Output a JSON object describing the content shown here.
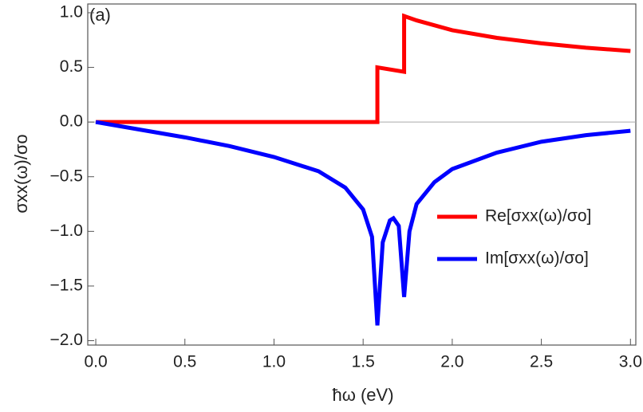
{
  "chart_data": {
    "type": "line",
    "annotation": "(a)",
    "x_label": "ħω (eV)",
    "y_label": "σxx(ω)/σo",
    "xlim": [
      -0.045,
      3.03
    ],
    "ylim": [
      -2.04,
      1.08
    ],
    "xticks": [
      {
        "value": 0,
        "label": "0.0"
      },
      {
        "value": 0.5,
        "label": "0.5"
      },
      {
        "value": 1,
        "label": "1.0"
      },
      {
        "value": 1.5,
        "label": "1.5"
      },
      {
        "value": 2,
        "label": "2.0"
      },
      {
        "value": 2.5,
        "label": "2.5"
      },
      {
        "value": 3,
        "label": "3.0"
      }
    ],
    "yticks": [
      {
        "value": 1,
        "label": "1.0"
      },
      {
        "value": 0.5,
        "label": "0.5"
      },
      {
        "value": 0,
        "label": "0.0"
      },
      {
        "value": -0.5,
        "label": "−0.5"
      },
      {
        "value": -1,
        "label": "−1.0"
      },
      {
        "value": -1.5,
        "label": "−1.5"
      },
      {
        "value": -2,
        "label": "−2.0"
      }
    ],
    "zero_line": true,
    "legend": "right",
    "series": [
      {
        "name": "Re[σxx(ω)/σo]",
        "color": "#ff0000",
        "x": [
          0,
          1.58,
          1.58,
          1.73,
          1.73,
          1.8,
          2.0,
          2.25,
          2.5,
          2.75,
          3.0
        ],
        "values": [
          0,
          0,
          0.5,
          0.46,
          0.97,
          0.93,
          0.84,
          0.77,
          0.72,
          0.68,
          0.65
        ]
      },
      {
        "name": "Im[σxx(ω)/σo]",
        "color": "#0000ff",
        "x": [
          0,
          0.25,
          0.5,
          0.75,
          1.0,
          1.25,
          1.4,
          1.5,
          1.55,
          1.58,
          1.61,
          1.65,
          1.67,
          1.7,
          1.73,
          1.76,
          1.8,
          1.9,
          2.0,
          2.25,
          2.5,
          2.75,
          3.0
        ],
        "values": [
          0,
          -0.07,
          -0.14,
          -0.22,
          -0.32,
          -0.45,
          -0.6,
          -0.8,
          -1.05,
          -1.86,
          -1.1,
          -0.9,
          -0.88,
          -0.95,
          -1.6,
          -1.0,
          -0.75,
          -0.55,
          -0.43,
          -0.28,
          -0.18,
          -0.12,
          -0.08
        ]
      }
    ]
  }
}
